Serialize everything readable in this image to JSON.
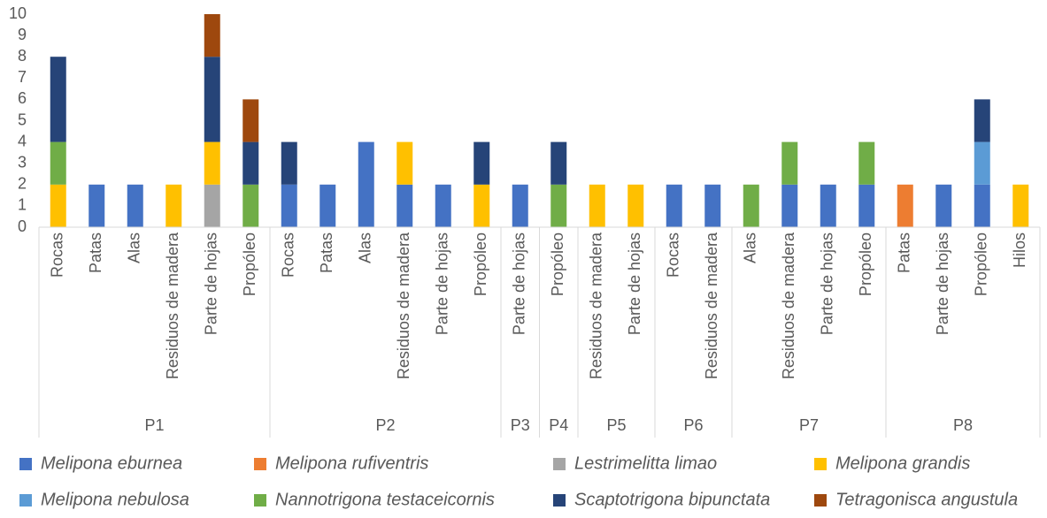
{
  "chart_data": {
    "type": "stacked_bar",
    "groups": [
      {
        "name": "P1",
        "categories": [
          "Rocas",
          "Patas",
          "Alas",
          "Residuos de madera",
          "Parte de hojas",
          "Propóleo"
        ]
      },
      {
        "name": "P2",
        "categories": [
          "Rocas",
          "Patas",
          "Alas",
          "Residuos de madera",
          "Parte de hojas",
          "Propóleo"
        ]
      },
      {
        "name": "P3",
        "categories": [
          "Parte de hojas"
        ]
      },
      {
        "name": "P4",
        "categories": [
          "Propóleo"
        ]
      },
      {
        "name": "P5",
        "categories": [
          "Residuos de madera",
          "Parte de hojas"
        ]
      },
      {
        "name": "P6",
        "categories": [
          "Rocas",
          "Residuos de madera"
        ]
      },
      {
        "name": "P7",
        "categories": [
          "Alas",
          "Residuos de madera",
          "Parte de hojas",
          "Propóleo"
        ]
      },
      {
        "name": "P8",
        "categories": [
          "Patas",
          "Parte de hojas",
          "Propóleo",
          "Hilos"
        ]
      }
    ],
    "series": [
      {
        "name": "Melipona eburnea",
        "color": "#4472c4",
        "values": [
          0,
          2,
          2,
          0,
          0,
          0,
          2,
          2,
          4,
          2,
          2,
          0,
          2,
          0,
          0,
          0,
          2,
          2,
          0,
          2,
          2,
          2,
          0,
          2,
          2,
          0
        ]
      },
      {
        "name": "Melipona rufiventris",
        "color": "#ed7d31",
        "values": [
          0,
          0,
          0,
          0,
          0,
          0,
          0,
          0,
          0,
          0,
          0,
          0,
          0,
          0,
          0,
          0,
          0,
          0,
          0,
          0,
          0,
          0,
          2,
          0,
          0,
          0
        ]
      },
      {
        "name": "Lestrimelitta limao",
        "color": "#a5a5a5",
        "values": [
          0,
          0,
          0,
          0,
          2,
          0,
          0,
          0,
          0,
          0,
          0,
          0,
          0,
          0,
          0,
          0,
          0,
          0,
          0,
          0,
          0,
          0,
          0,
          0,
          0,
          0
        ]
      },
      {
        "name": "Melipona grandis",
        "color": "#ffc000",
        "values": [
          2,
          0,
          0,
          2,
          2,
          0,
          0,
          0,
          0,
          2,
          0,
          2,
          0,
          0,
          2,
          2,
          0,
          0,
          0,
          0,
          0,
          0,
          0,
          0,
          0,
          2
        ]
      },
      {
        "name": "Melipona nebulosa",
        "color": "#5b9bd5",
        "values": [
          0,
          0,
          0,
          0,
          0,
          0,
          0,
          0,
          0,
          0,
          0,
          0,
          0,
          0,
          0,
          0,
          0,
          0,
          0,
          0,
          0,
          0,
          0,
          0,
          2,
          0
        ]
      },
      {
        "name": "Nannotrigona testaceicornis",
        "color": "#70ad47",
        "values": [
          2,
          0,
          0,
          0,
          0,
          2,
          0,
          0,
          0,
          0,
          0,
          0,
          0,
          2,
          0,
          0,
          0,
          0,
          2,
          2,
          0,
          2,
          0,
          0,
          0,
          0
        ]
      },
      {
        "name": "Scaptotrigona bipunctata",
        "color": "#264478",
        "values": [
          4,
          0,
          0,
          0,
          4,
          2,
          2,
          0,
          0,
          0,
          0,
          2,
          0,
          2,
          0,
          0,
          0,
          0,
          0,
          0,
          0,
          0,
          0,
          0,
          2,
          0
        ]
      },
      {
        "name": "Tetragonisca angustula",
        "color": "#9e480e",
        "values": [
          0,
          0,
          0,
          0,
          2,
          2,
          0,
          0,
          0,
          0,
          0,
          0,
          0,
          0,
          0,
          0,
          0,
          0,
          0,
          0,
          0,
          0,
          0,
          0,
          0,
          0
        ]
      }
    ],
    "ylim": [
      0,
      10
    ],
    "yticks": [
      0,
      1,
      2,
      3,
      4,
      5,
      6,
      7,
      8,
      9,
      10
    ],
    "grid": false
  }
}
